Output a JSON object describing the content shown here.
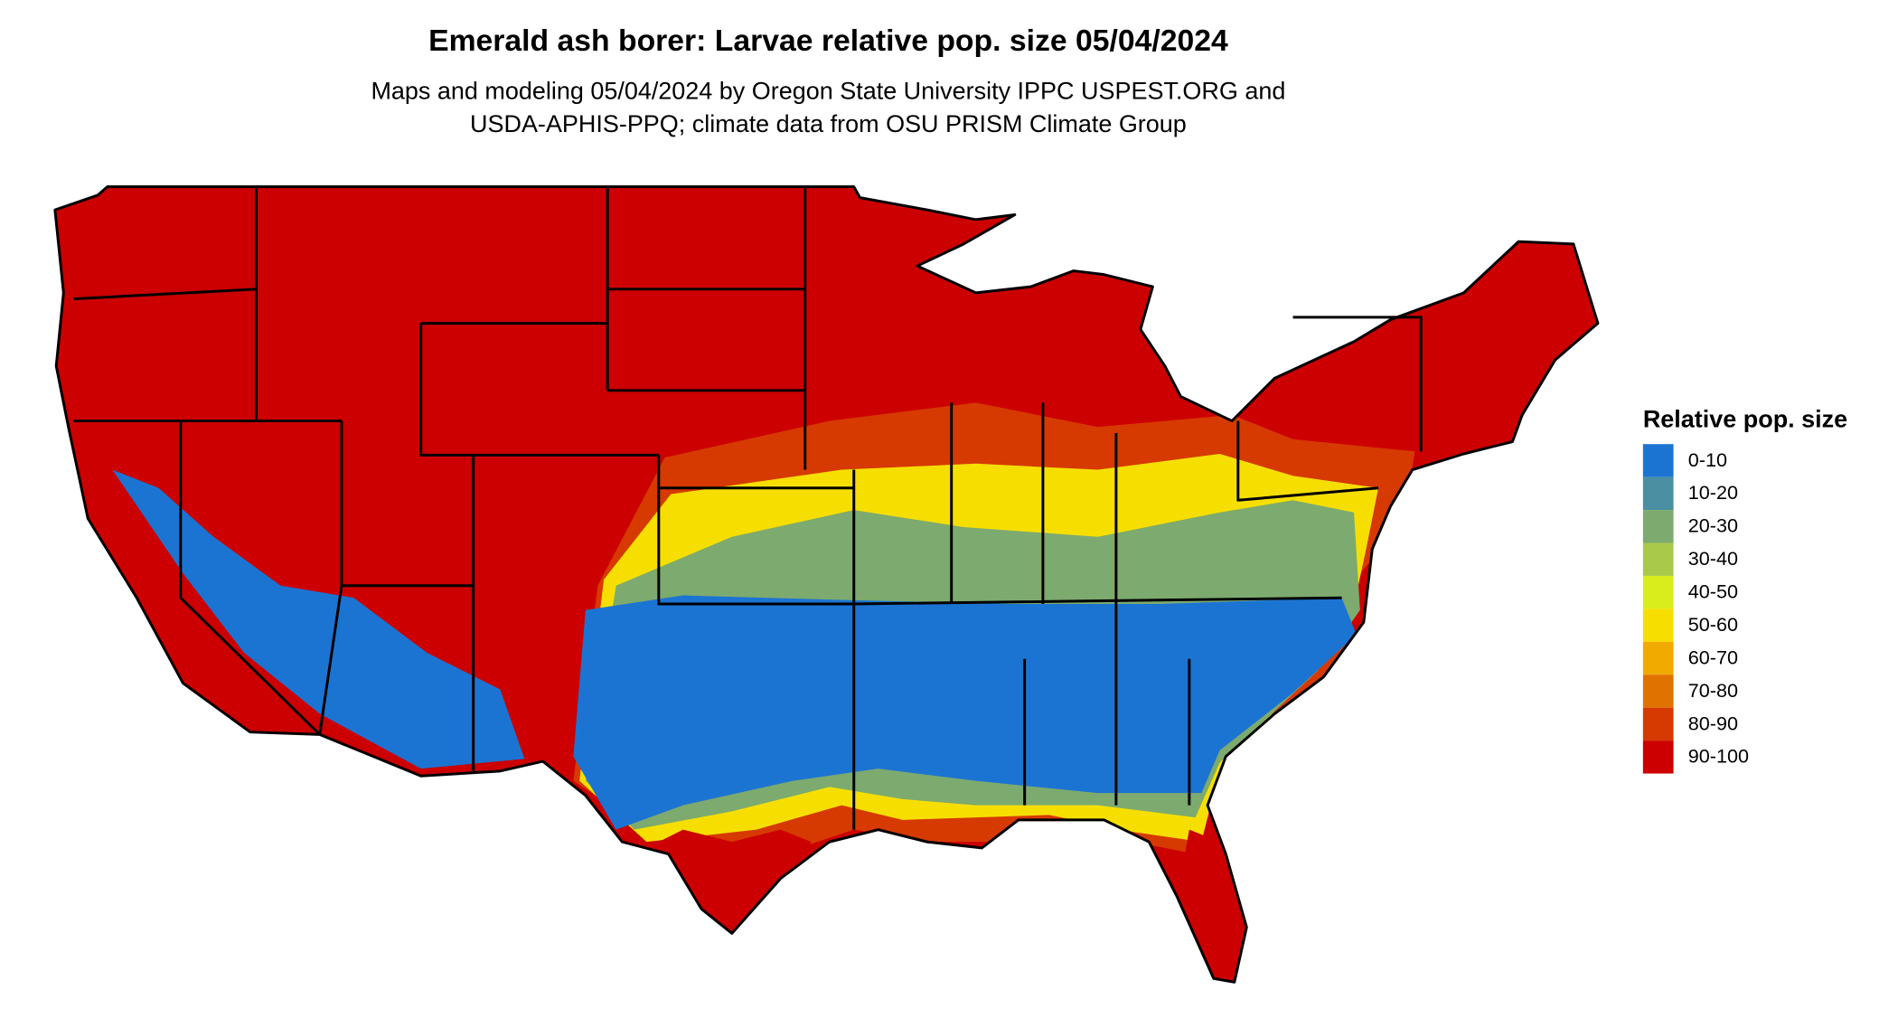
{
  "title": "Emerald ash borer: Larvae relative pop. size 05/04/2024",
  "subtitle": [
    "Maps and modeling 05/04/2024 by Oregon State University IPPC USPEST.ORG and",
    "USDA-APHIS-PPQ; climate data from OSU PRISM Climate Group"
  ],
  "legend": {
    "title": "Relative pop. size",
    "items": [
      {
        "label": "0-10",
        "color": "#1c74d2"
      },
      {
        "label": "10-20",
        "color": "#4a8fa2"
      },
      {
        "label": "20-30",
        "color": "#7daa6e"
      },
      {
        "label": "30-40",
        "color": "#a9c94a"
      },
      {
        "label": "40-50",
        "color": "#d9ec1c"
      },
      {
        "label": "50-60",
        "color": "#f6df00"
      },
      {
        "label": "60-70",
        "color": "#f0aa00"
      },
      {
        "label": "70-80",
        "color": "#e07200"
      },
      {
        "label": "80-90",
        "color": "#d63a00"
      },
      {
        "label": "90-100",
        "color": "#cc0000"
      }
    ]
  }
}
